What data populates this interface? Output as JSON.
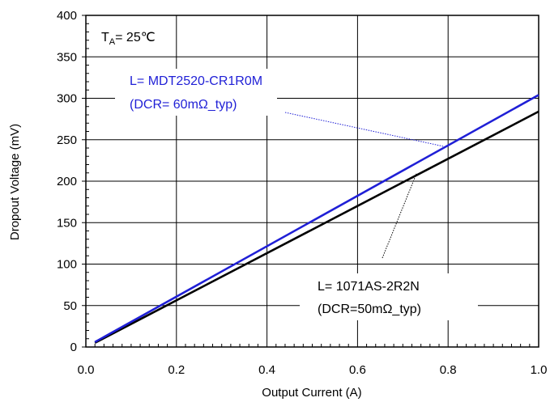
{
  "chart_data": {
    "type": "line",
    "xlabel": "Output Current (A)",
    "ylabel": "Dropout Voltage (mV)",
    "xlim": [
      0.0,
      1.0
    ],
    "ylim": [
      0,
      400
    ],
    "xticks": [
      "0.0",
      "0.2",
      "0.4",
      "0.6",
      "0.8",
      "1.0"
    ],
    "yticks": [
      "0",
      "50",
      "100",
      "150",
      "200",
      "250",
      "300",
      "350",
      "400"
    ],
    "grid": true,
    "condition": {
      "main": "T",
      "sub": "A",
      "rest": "= 25℃"
    },
    "series": [
      {
        "name": "L= MDT2520-CR1R0M",
        "color": "#1f1fd6",
        "x": [
          0.02,
          1.0
        ],
        "y": [
          6,
          304
        ]
      },
      {
        "name": "L= 1071AS-2R2N",
        "color": "#000000",
        "x": [
          0.02,
          1.0
        ],
        "y": [
          5,
          284
        ]
      }
    ],
    "annotations": [
      {
        "line1": "L= MDT2520-CR1R0M",
        "line2": "(DCR= 60mΩ_typ)",
        "color": "#1f1fd6",
        "target_x": 0.79,
        "target_y": 242
      },
      {
        "line1": "L= 1071AS-2R2N",
        "line2": "(DCR=50mΩ_typ)",
        "color": "#000000",
        "target_x": 0.73,
        "target_y": 209
      }
    ]
  }
}
